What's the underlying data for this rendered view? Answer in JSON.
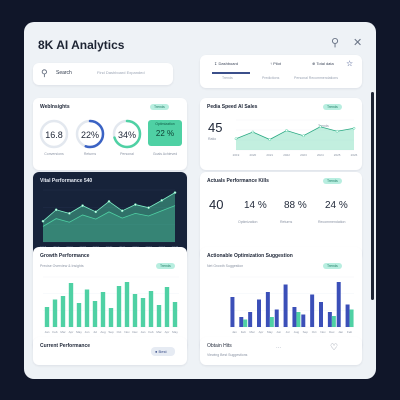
{
  "app": {
    "title": "8K AI Analytics"
  },
  "header": {
    "search_icon": "search-icon",
    "close_icon": "close-icon"
  },
  "search": {
    "label": "Search",
    "placeholder": "Find Dashboard Expanded"
  },
  "tabs": {
    "items": [
      {
        "label": "Dashboard",
        "sub": "Trends"
      },
      {
        "label": "Pilot",
        "sub": "Predictions"
      },
      {
        "label": "Total data",
        "sub": "Personal Recommendations"
      }
    ]
  },
  "cards": {
    "insights": {
      "title": "WebInsights",
      "pill": "Trends",
      "rings": [
        {
          "value": "16.8",
          "label": "Conversions",
          "fraction": 0.0,
          "color": "#d6dce6"
        },
        {
          "value": "22%",
          "label": "Returns",
          "fraction": 0.55,
          "color": "#3b63c4"
        },
        {
          "value": "34%",
          "label": "Personal",
          "fraction": 0.7,
          "color": "#4fd1a4"
        }
      ],
      "highlight": {
        "value": "22 %",
        "top": "Optimization",
        "label": "Goals Achieved"
      }
    },
    "speed": {
      "title": "Pedia Speed  AI Sales",
      "pill": "Trends",
      "value": "45",
      "sub": "Ratio",
      "annotation": "Trends"
    },
    "perf1": {
      "title": "Vital Performance 540"
    },
    "actual": {
      "title": "Actuals Performance Kills",
      "pill": "Trends",
      "value": "40",
      "stats": [
        {
          "value": "14 %",
          "label": "Optimization"
        },
        {
          "value": "88 %",
          "label": "Returns"
        },
        {
          "value": "24 %",
          "label": "Recommendation"
        }
      ]
    },
    "growth": {
      "title": "Growth Performance",
      "sub": "Precise Overview & Insights",
      "pill": "Trends"
    },
    "suggest": {
      "title": "Actionable Optimization Suggestion",
      "sub": "Net Growth Suggestion",
      "pill": "Trends"
    },
    "bottom_left": {
      "title": "Current Performance",
      "label": "Best"
    },
    "bottom_right": {
      "title": "Obtain Hits",
      "sub": "Viewing Best Suggestions"
    }
  },
  "chart_data": [
    {
      "type": "area",
      "title": "Pedia Speed  AI Sales",
      "x": [
        "2019",
        "2020",
        "2021",
        "2022",
        "2023",
        "2024",
        "2025",
        "2026"
      ],
      "series": [
        {
          "values": [
            30,
            48,
            28,
            52,
            38,
            62,
            50,
            58
          ]
        }
      ],
      "ylim": [
        0,
        80
      ],
      "accent": "#4fd1a4"
    },
    {
      "type": "area",
      "title": "Vital Performance 540",
      "x": [
        "2015",
        "2016",
        "2017",
        "2018",
        "2019",
        "2020",
        "2021",
        "2022",
        "2023",
        "2024",
        "2025"
      ],
      "series": [
        {
          "values": [
            40,
            62,
            55,
            70,
            58,
            78,
            60,
            72,
            66,
            80,
            95
          ]
        },
        {
          "values": [
            30,
            45,
            38,
            52,
            44,
            58,
            46,
            55,
            50,
            60,
            70
          ]
        }
      ],
      "ylim": [
        0,
        100
      ],
      "accent": "#4fd1a4"
    },
    {
      "type": "bar",
      "title": "Growth Performance",
      "categories": [
        "Jan",
        "Feb",
        "Mar",
        "Apr",
        "May",
        "Jun",
        "Jul",
        "Aug",
        "Sep",
        "Oct",
        "Nov",
        "Dec",
        "Jan",
        "Feb",
        "Mar",
        "Apr",
        "May"
      ],
      "values": [
        40,
        55,
        62,
        88,
        48,
        75,
        52,
        70,
        38,
        82,
        90,
        66,
        58,
        72,
        44,
        80,
        50
      ],
      "ylim": [
        0,
        100
      ],
      "accent": "#4fd1a4"
    },
    {
      "type": "bar",
      "title": "Actionable Optimization Suggestion",
      "categories": [
        "Jan",
        "Feb",
        "Mar",
        "Apr",
        "May",
        "Jun",
        "Jul",
        "Aug",
        "Sep",
        "Oct",
        "Nov",
        "Dec",
        "Jan",
        "Feb"
      ],
      "series": [
        {
          "values": [
            60,
            20,
            30,
            55,
            70,
            35,
            85,
            40,
            25,
            65,
            50,
            30,
            90,
            45
          ]
        },
        {
          "values": [
            0,
            15,
            0,
            0,
            20,
            0,
            0,
            30,
            0,
            0,
            0,
            22,
            0,
            35
          ]
        }
      ],
      "ylim": [
        0,
        100
      ],
      "colors": [
        "#3b4fb8",
        "#4fd1a4"
      ]
    }
  ]
}
